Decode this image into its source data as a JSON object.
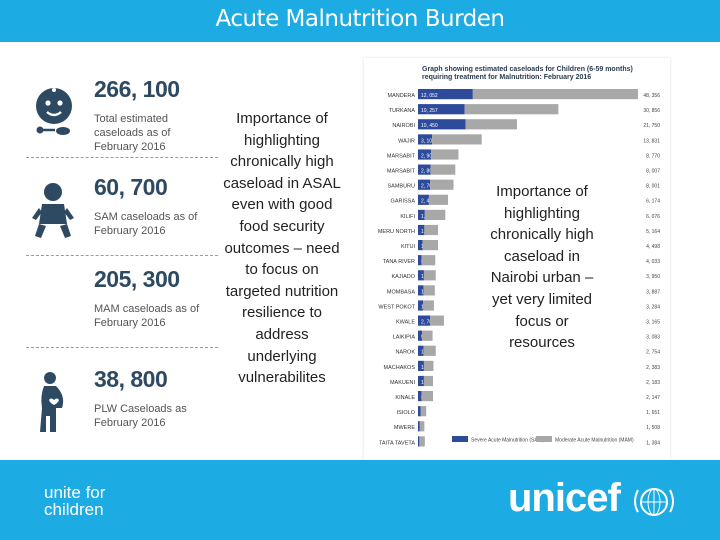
{
  "header": {
    "title": "Acute Malnutrition Burden",
    "color": "#1CABE2"
  },
  "stats": [
    {
      "value": "266, 100",
      "label": "Total estimated caseloads as of February 2016",
      "icon": "child-face-icon"
    },
    {
      "value": "60, 700",
      "label": "SAM caseloads as of February 2016",
      "icon": "baby-icon"
    },
    {
      "value": "205, 300",
      "label": "MAM caseloads as of February 2016",
      "icon": "baby-icon"
    },
    {
      "value": "38, 800",
      "label": "PLW Caseloads as February 2016",
      "icon": "pregnant-woman-icon"
    }
  ],
  "middle_note": "Importance of highlighting chronically high caseload in ASAL even with good food security outcomes – need to focus on targeted nutrition resilience to address underlying vulnerabilites",
  "right_note": "Importance of highlighting chronically high caseload in Nairobi urban – yet very limited focus or resources",
  "chart_data": {
    "type": "bar",
    "orientation": "horizontal",
    "stacked": true,
    "title": "Graph showing estimated caseloads for Children (6-59 months) requiring treatment for Malnutrition: February 2016",
    "categories": [
      "MANDERA",
      "TURKANA",
      "NAIROBI",
      "WAJIR",
      "MARSABIT",
      "MARSABIT",
      "SAMBURU",
      "GARISSA",
      "KILIFI",
      "MERU NORTH",
      "KITUI",
      "TANA RIVER",
      "KAJIADO",
      "MOMBASA",
      "WEST POKOT",
      "KWALE",
      "LAIKIPIA",
      "NAROK",
      "MACHAKOS",
      "MAKUENI",
      "KINALE",
      "ISIOLO",
      "MWERE",
      "TAITA TAVETA"
    ],
    "series": [
      {
        "name": "Severe Acute Malnutrition",
        "color": "#2E4B9B",
        "values": [
          12052,
          10257,
          10450,
          3100,
          2900,
          2800,
          2700,
          2400,
          1500,
          1400,
          1000,
          800,
          1300,
          1200,
          1100,
          2700,
          900,
          1200,
          1300,
          1300,
          800,
          600,
          400,
          300
        ]
      },
      {
        "name": "Moderate Acute Malnutrition",
        "color": "#A8A8A8",
        "values": [
          36304,
          20599,
          11300,
          10900,
          6000,
          5400,
          5100,
          4200,
          4500,
          3000,
          3400,
          3000,
          2600,
          2500,
          2400,
          3000,
          2300,
          2700,
          2100,
          2000,
          2500,
          1200,
          1000,
          1200
        ]
      }
    ],
    "value_labels": [
      "48, 356",
      "30, 856",
      "21, 750",
      "13, 831",
      "8, 770",
      "8, 007",
      "8, 001",
      "6, 174",
      "6, 076",
      "5, 164",
      "4, 498",
      "4, 033",
      "3, 950",
      "3, 887",
      "3, 284",
      "3, 165",
      "3, 083",
      "2, 754",
      "2, 383",
      "2, 183",
      "2, 147",
      "1, 651",
      "1, 508",
      "1, 384"
    ],
    "legend": {
      "position": "bottom",
      "entries": [
        "Severe Acute Malnutrition (SAM)",
        "Moderate Acute Malnutrition (MAM)"
      ]
    }
  },
  "footer": {
    "tagline_line1": "unite for",
    "tagline_line2": "children",
    "logo": "unicef",
    "emblem": "unicef-emblem-icon",
    "color": "#1CABE2"
  }
}
